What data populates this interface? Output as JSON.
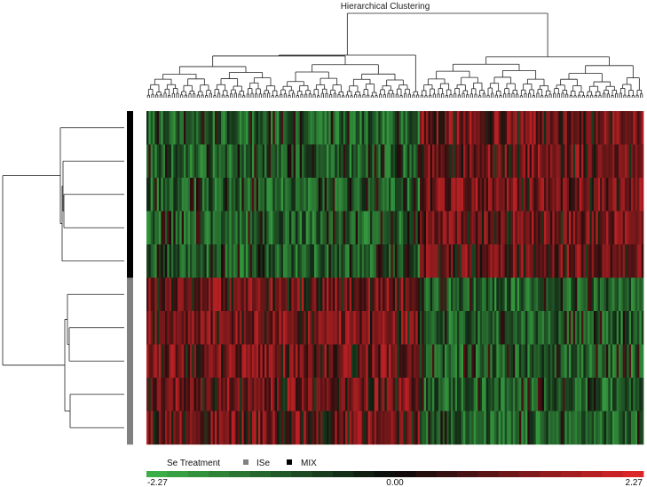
{
  "chart_data": {
    "type": "heatmap",
    "title": "Hierarchical Clustering",
    "rows": 10,
    "columns": 240,
    "row_groups": [
      "MIX",
      "MIX",
      "MIX",
      "MIX",
      "MIX",
      "ISe",
      "ISe",
      "ISe",
      "ISe",
      "ISe"
    ],
    "column_split": 0.55,
    "pattern": "MIX rows are predominantly green (negative) in the left cluster of columns and red (positive) in the right cluster; ISe rows show the opposite pattern.",
    "color_scale": {
      "min": -2.27,
      "mid": 0.0,
      "max": 2.27,
      "min_color": "#3db54a",
      "mid_color": "#0a0a0a",
      "max_color": "#e3262a",
      "ticks": [
        "-2.27",
        "0.00",
        "2.27"
      ]
    },
    "legend": {
      "title": "Se Treatment",
      "items": [
        {
          "label": "ISe",
          "color": "#808080"
        },
        {
          "label": "MIX",
          "color": "#000000"
        }
      ]
    },
    "row_dendrogram": true,
    "column_dendrogram": true
  }
}
